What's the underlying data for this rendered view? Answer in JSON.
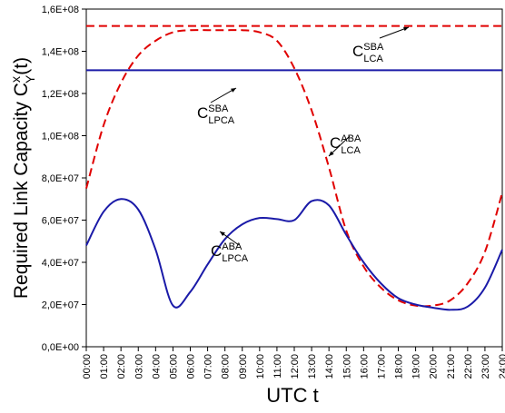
{
  "chart_data": {
    "type": "line",
    "y_label": {
      "text": "Required Link Capacity C",
      "sup": "x",
      "sub": "Y",
      "suffix": "(t)"
    },
    "x_label": "UTC t",
    "x": [
      0,
      1,
      2,
      3,
      4,
      5,
      6,
      7,
      8,
      9,
      10,
      11,
      12,
      13,
      14,
      15,
      16,
      17,
      18,
      19,
      20,
      21,
      22,
      23,
      24
    ],
    "xlim": [
      0,
      24
    ],
    "xticks": [
      {
        "value": 0,
        "label": "00:00"
      },
      {
        "value": 1,
        "label": "01:00"
      },
      {
        "value": 2,
        "label": "02:00"
      },
      {
        "value": 3,
        "label": "03:00"
      },
      {
        "value": 4,
        "label": "04:00"
      },
      {
        "value": 5,
        "label": "05:00"
      },
      {
        "value": 6,
        "label": "06:00"
      },
      {
        "value": 7,
        "label": "07:00"
      },
      {
        "value": 8,
        "label": "08:00"
      },
      {
        "value": 9,
        "label": "09:00"
      },
      {
        "value": 10,
        "label": "10:00"
      },
      {
        "value": 11,
        "label": "11:00"
      },
      {
        "value": 12,
        "label": "12:00"
      },
      {
        "value": 13,
        "label": "13:00"
      },
      {
        "value": 14,
        "label": "14:00"
      },
      {
        "value": 15,
        "label": "15:00"
      },
      {
        "value": 16,
        "label": "16:00"
      },
      {
        "value": 17,
        "label": "17:00"
      },
      {
        "value": 18,
        "label": "18:00"
      },
      {
        "value": 19,
        "label": "19:00"
      },
      {
        "value": 20,
        "label": "20:00"
      },
      {
        "value": 21,
        "label": "21:00"
      },
      {
        "value": 22,
        "label": "22:00"
      },
      {
        "value": 23,
        "label": "23:00"
      },
      {
        "value": 24,
        "label": "24:00"
      }
    ],
    "ylim": [
      0,
      160000000
    ],
    "yticks": [
      {
        "value": 0,
        "label": "0,0E+00"
      },
      {
        "value": 20000000,
        "label": "2,0E+07"
      },
      {
        "value": 40000000,
        "label": "4,0E+07"
      },
      {
        "value": 60000000,
        "label": "6,0E+07"
      },
      {
        "value": 80000000,
        "label": "8,0E+07"
      },
      {
        "value": 100000000,
        "label": "1,0E+08"
      },
      {
        "value": 120000000,
        "label": "1,2E+08"
      },
      {
        "value": 140000000,
        "label": "1,4E+08"
      },
      {
        "value": 160000000,
        "label": "1,6E+08"
      }
    ],
    "series": [
      {
        "color": "#e00000",
        "dash": true,
        "values": [
          75000000,
          105000000,
          125000000,
          138000000,
          145000000,
          149000000,
          150000000,
          150000000,
          150000000,
          150000000,
          149000000,
          145000000,
          132000000,
          112000000,
          85000000,
          55000000,
          38000000,
          28000000,
          22000000,
          19500000,
          19500000,
          22000000,
          30000000,
          45000000,
          73000000
        ]
      },
      {
        "color": "#1a1aa8",
        "dash": false,
        "values": [
          48000000,
          64000000,
          70000000,
          65000000,
          46000000,
          19500000,
          26000000,
          39000000,
          51000000,
          58000000,
          61000000,
          60500000,
          60000000,
          69000000,
          67000000,
          53000000,
          40000000,
          30000000,
          23000000,
          20000000,
          18500000,
          17500000,
          19000000,
          28000000,
          46000000
        ]
      },
      {
        "color": "#e00000",
        "dash": true,
        "x": [
          0,
          24
        ],
        "values": [
          152000000,
          152000000
        ]
      },
      {
        "color": "#1a1aa8",
        "dash": false,
        "x": [
          0,
          24
        ],
        "values": [
          131000000,
          131000000
        ]
      }
    ],
    "annotations": [
      {
        "text": "C",
        "sup": "SBA",
        "sub": "LCA"
      },
      {
        "text": "C",
        "sup": "SBA",
        "sub": "LPCA"
      },
      {
        "text": "C",
        "sup": "ABA",
        "sub": "LCA"
      },
      {
        "text": "C",
        "sup": "ABA",
        "sub": "LPCA"
      }
    ]
  }
}
